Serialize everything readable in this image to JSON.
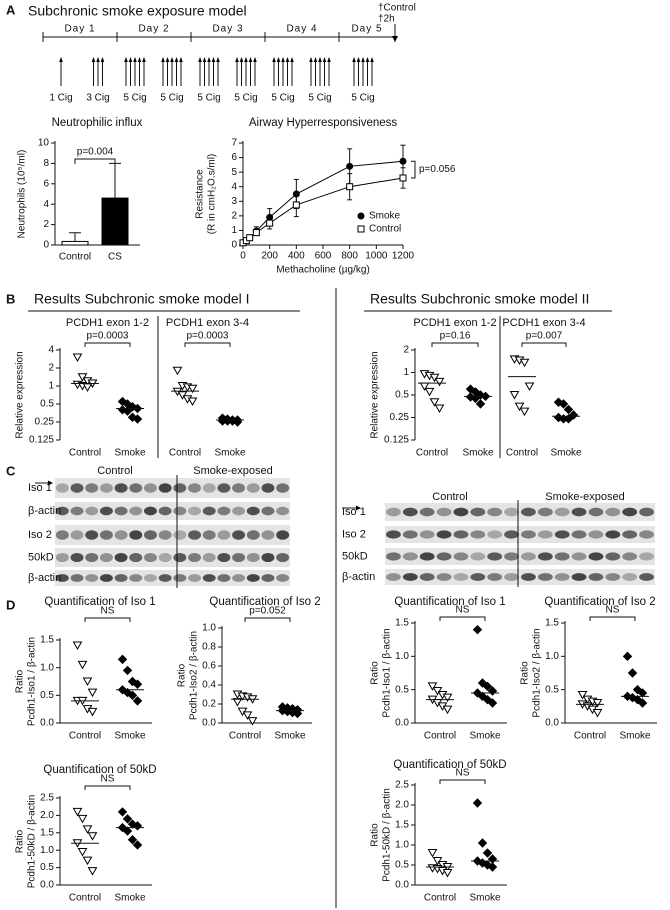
{
  "figure": {
    "panel_labels": [
      "A",
      "B",
      "C",
      "D"
    ],
    "A": {
      "title": "Subchronic smoke exposure model",
      "days": [
        "Day 1",
        "Day 2",
        "Day 3",
        "Day 4",
        "Day 5"
      ],
      "doses": [
        [
          {
            "label": "1 Cig",
            "count": 1
          },
          {
            "label": "3 Cig",
            "count": 3
          }
        ],
        [
          {
            "label": "5 Cig",
            "count": 5
          },
          {
            "label": "5 Cig",
            "count": 5
          }
        ],
        [
          {
            "label": "5 Cig",
            "count": 5
          },
          {
            "label": "5 Cig",
            "count": 5
          }
        ],
        [
          {
            "label": "5 Cig",
            "count": 5
          },
          {
            "label": "5 Cig",
            "count": 5
          }
        ],
        [
          {
            "label": "5 Cig",
            "count": 5
          }
        ]
      ],
      "endpoint": [
        "†Control",
        "†2h"
      ]
    },
    "B": {
      "titles": [
        "Results Subchronic smoke model I",
        "Results Subchronic smoke model II"
      ]
    },
    "C": {
      "blots": [
        {
          "groups": [
            "Control",
            "Smoke-exposed"
          ],
          "rows": [
            "Iso 1",
            "β-actin",
            "Iso 2",
            "50kD",
            "β-actin"
          ]
        },
        {
          "groups": [
            "Control",
            "Smoke-exposed"
          ],
          "rows": [
            "Iso 1",
            "Iso 2",
            "50kD",
            "β-actin"
          ]
        }
      ]
    }
  },
  "chart_data": [
    {
      "type": "bar",
      "title": "Neutrophilic influx",
      "ylabel": [
        "Neutrophils (10⁵/ml)"
      ],
      "categories": [
        "Control",
        "CS"
      ],
      "values": [
        0.35,
        4.6
      ],
      "errors": [
        0.85,
        3.4
      ],
      "colors": [
        "#ffffff",
        "#000000"
      ],
      "ylim": [
        0,
        10
      ],
      "yticks": [
        0,
        2,
        4,
        6,
        8,
        10
      ],
      "annotation": "p=0.004"
    },
    {
      "type": "line",
      "title": "Airway Hyperresponsiveness",
      "ylabel": [
        "Resistance",
        "(R in cmH₂O.s/ml)"
      ],
      "xlabel": "Methacholine (µg/kg)",
      "x": [
        0,
        25,
        50,
        100,
        200,
        400,
        800,
        1200
      ],
      "xlim": [
        0,
        1200
      ],
      "xticks": [
        0,
        200,
        400,
        600,
        800,
        1000,
        1200
      ],
      "ylim": [
        0,
        7
      ],
      "yticks": [
        0,
        1,
        2,
        3,
        4,
        5,
        6,
        7
      ],
      "series": [
        {
          "name": "Smoke",
          "marker": "circle",
          "values": [
            0.15,
            0.3,
            0.5,
            0.95,
            1.9,
            3.5,
            5.4,
            5.75
          ],
          "errors": [
            0.05,
            0.1,
            0.15,
            0.3,
            0.6,
            1.0,
            1.2,
            1.1
          ]
        },
        {
          "name": "Control",
          "marker": "square",
          "values": [
            0.15,
            0.3,
            0.5,
            0.85,
            1.5,
            2.75,
            4.0,
            4.6
          ],
          "errors": [
            0.05,
            0.1,
            0.15,
            0.2,
            0.4,
            0.8,
            0.9,
            0.7
          ]
        }
      ],
      "annotation": "p=0.056"
    },
    {
      "type": "dot",
      "subtitles": [
        "PCDH1 exon 1-2",
        "PCDH1 exon 3-4"
      ],
      "ylabel": [
        "Relative expression"
      ],
      "categories": [
        "Control",
        "Smoke",
        "Control",
        "Smoke"
      ],
      "markers": [
        "triangle-down",
        "diamond",
        "triangle-down",
        "diamond"
      ],
      "points": [
        [
          3.0,
          1.4,
          1.2,
          1.1,
          1.05,
          1.0,
          0.95,
          1.1
        ],
        [
          0.55,
          0.5,
          0.45,
          0.42,
          0.4,
          0.38,
          0.3,
          0.28
        ],
        [
          1.8,
          1.0,
          0.95,
          0.9,
          0.8,
          0.7,
          0.6,
          0.55
        ],
        [
          0.29,
          0.28,
          0.27,
          0.27,
          0.26,
          0.26,
          0.26,
          0.25
        ]
      ],
      "medians": [
        1.1,
        0.42,
        0.82,
        0.27
      ],
      "brackets": [
        "p=0.0003",
        "p=0.0003"
      ],
      "ylog": true,
      "ylim": [
        0.125,
        4
      ],
      "yticks": [
        0.125,
        0.25,
        0.5,
        1,
        2,
        4
      ]
    },
    {
      "type": "dot",
      "subtitles": [
        "PCDH1 exon 1-2",
        "PCDH1 exon 3-4"
      ],
      "ylabel": [
        "Relative expression"
      ],
      "categories": [
        "Control",
        "Smoke",
        "Control",
        "Smoke"
      ],
      "markers": [
        "triangle-down",
        "diamond",
        "triangle-down",
        "diamond"
      ],
      "points": [
        [
          0.95,
          0.9,
          0.85,
          0.75,
          0.65,
          0.55,
          0.4,
          0.33
        ],
        [
          0.6,
          0.55,
          0.5,
          0.48,
          0.47,
          0.45,
          0.38
        ],
        [
          1.5,
          1.45,
          1.35,
          0.65,
          0.5,
          0.35,
          0.3
        ],
        [
          0.4,
          0.38,
          0.32,
          0.27,
          0.25,
          0.24,
          0.24
        ]
      ],
      "medians": [
        0.72,
        0.48,
        0.88,
        0.26
      ],
      "brackets": [
        "p=0.16",
        "p=0.007"
      ],
      "ylog": true,
      "ylim": [
        0.125,
        2
      ],
      "yticks": [
        0.125,
        0.25,
        0.5,
        1,
        2
      ]
    },
    {
      "type": "dot",
      "title": "Quantification of Iso 1",
      "ylabel": [
        "Ratio",
        "Pcdh1-Iso1 / β-actin"
      ],
      "categories": [
        "Control",
        "Smoke"
      ],
      "markers": [
        "triangle-down",
        "diamond"
      ],
      "points": [
        [
          1.4,
          1.05,
          0.75,
          0.55,
          0.4,
          0.4,
          0.25,
          0.2
        ],
        [
          1.15,
          0.95,
          0.75,
          0.7,
          0.6,
          0.55,
          0.5,
          0.4
        ]
      ],
      "medians": [
        0.4,
        0.6
      ],
      "brackets": [
        "NS"
      ],
      "ylim": [
        0,
        1.5
      ],
      "yticks": [
        {
          "value": 0,
          "label": "0.0"
        },
        0.5,
        {
          "value": 1,
          "label": "1.0"
        },
        1.5
      ]
    },
    {
      "type": "dot",
      "title": "Quantification of Iso 2",
      "ylabel": [
        "Ratio",
        "Pcdh1-Iso2 / β-actin"
      ],
      "categories": [
        "Control",
        "Smoke"
      ],
      "markers": [
        "triangle-down",
        "diamond"
      ],
      "points": [
        [
          0.3,
          0.28,
          0.27,
          0.25,
          0.22,
          0.12,
          0.08,
          0.02
        ],
        [
          0.17,
          0.16,
          0.15,
          0.14,
          0.13,
          0.12,
          0.11,
          0.1
        ]
      ],
      "medians": [
        0.25,
        0.13
      ],
      "brackets": [
        "p=0.052"
      ],
      "ylim": [
        0,
        1
      ],
      "yticks": [
        {
          "value": 0,
          "label": "0.0"
        },
        0.2,
        0.4,
        0.6,
        0.8,
        {
          "value": 1,
          "label": "1.0"
        }
      ]
    },
    {
      "type": "dot",
      "title": "Quantification of 50kD",
      "ylabel": [
        "Ratio",
        "Pcdh1-50kD / β-actin"
      ],
      "categories": [
        "Control",
        "Smoke"
      ],
      "markers": [
        "triangle-down",
        "diamond"
      ],
      "points": [
        [
          2.1,
          1.9,
          1.6,
          1.4,
          1.2,
          0.95,
          0.7,
          0.4
        ],
        [
          2.1,
          1.9,
          1.75,
          1.7,
          1.65,
          1.55,
          1.3,
          1.15
        ]
      ],
      "medians": [
        1.2,
        1.65
      ],
      "brackets": [
        "NS"
      ],
      "ylim": [
        0,
        2.5
      ],
      "yticks": [
        {
          "value": 0,
          "label": "0.0"
        },
        0.5,
        {
          "value": 1,
          "label": "1.0"
        },
        1.5,
        {
          "value": 2,
          "label": "2.0"
        },
        2.5
      ]
    },
    {
      "type": "dot",
      "title": "Quantification of Iso 1",
      "ylabel": [
        "Ratio",
        "Pcdh1-Iso1 / β-actin"
      ],
      "categories": [
        "Control",
        "Smoke"
      ],
      "markers": [
        "triangle-down",
        "diamond"
      ],
      "points": [
        [
          0.55,
          0.48,
          0.42,
          0.38,
          0.35,
          0.3,
          0.25,
          0.2
        ],
        [
          1.4,
          0.6,
          0.55,
          0.48,
          0.45,
          0.4,
          0.35,
          0.3
        ]
      ],
      "medians": [
        0.35,
        0.45
      ],
      "brackets": [
        "NS"
      ],
      "ylim": [
        0,
        1.5
      ],
      "yticks": [
        {
          "value": 0,
          "label": "0.0"
        },
        0.5,
        {
          "value": 1,
          "label": "1.0"
        },
        1.5
      ]
    },
    {
      "type": "dot",
      "title": "Quantification of Iso 2",
      "ylabel": [
        "Ratio",
        "Pcdh1-Iso2 / β-actin"
      ],
      "categories": [
        "Control",
        "Smoke"
      ],
      "markers": [
        "triangle-down",
        "diamond"
      ],
      "points": [
        [
          0.42,
          0.35,
          0.32,
          0.3,
          0.28,
          0.25,
          0.2,
          0.15
        ],
        [
          1.0,
          0.75,
          0.5,
          0.45,
          0.4,
          0.38,
          0.35,
          0.3
        ]
      ],
      "medians": [
        0.28,
        0.4
      ],
      "brackets": [
        "NS"
      ],
      "ylim": [
        0,
        1.5
      ],
      "yticks": [
        {
          "value": 0,
          "label": "0.0"
        },
        0.5,
        {
          "value": 1,
          "label": "1.0"
        },
        1.5
      ]
    },
    {
      "type": "dot",
      "title": "Quantification of 50kD",
      "ylabel": [
        "Ratio",
        "Pcdh1-50kD / β-actin"
      ],
      "categories": [
        "Control",
        "Smoke"
      ],
      "markers": [
        "triangle-down",
        "diamond"
      ],
      "points": [
        [
          0.8,
          0.6,
          0.5,
          0.45,
          0.42,
          0.4,
          0.35,
          0.3
        ],
        [
          2.05,
          1.05,
          0.8,
          0.65,
          0.6,
          0.55,
          0.5,
          0.45
        ]
      ],
      "medians": [
        0.45,
        0.6
      ],
      "brackets": [
        "NS"
      ],
      "ylim": [
        0,
        2.5
      ],
      "yticks": [
        {
          "value": 0,
          "label": "0.0"
        },
        0.5,
        {
          "value": 1,
          "label": "1.0"
        },
        1.5,
        {
          "value": 2,
          "label": "2.0"
        },
        2.5
      ]
    }
  ]
}
